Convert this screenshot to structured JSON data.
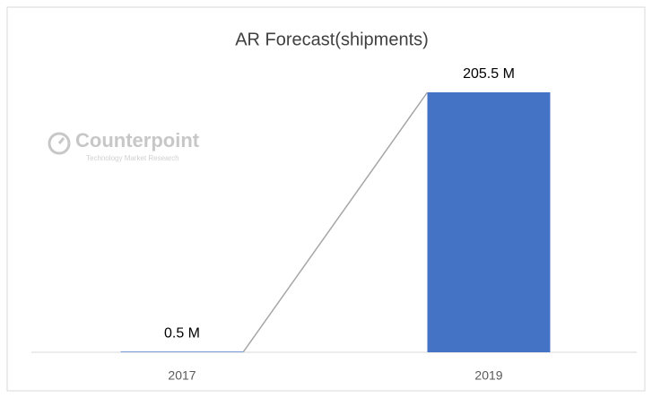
{
  "chart_data": {
    "type": "bar",
    "title": "AR Forecast(shipments)",
    "categories": [
      "2017",
      "2019"
    ],
    "values": [
      0.5,
      205.5
    ],
    "value_labels": [
      "0.5 M",
      "205.5 M"
    ],
    "color": "#4472c4",
    "watermark": {
      "name": "Counterpoint",
      "tagline": "Technology Market Research"
    }
  }
}
